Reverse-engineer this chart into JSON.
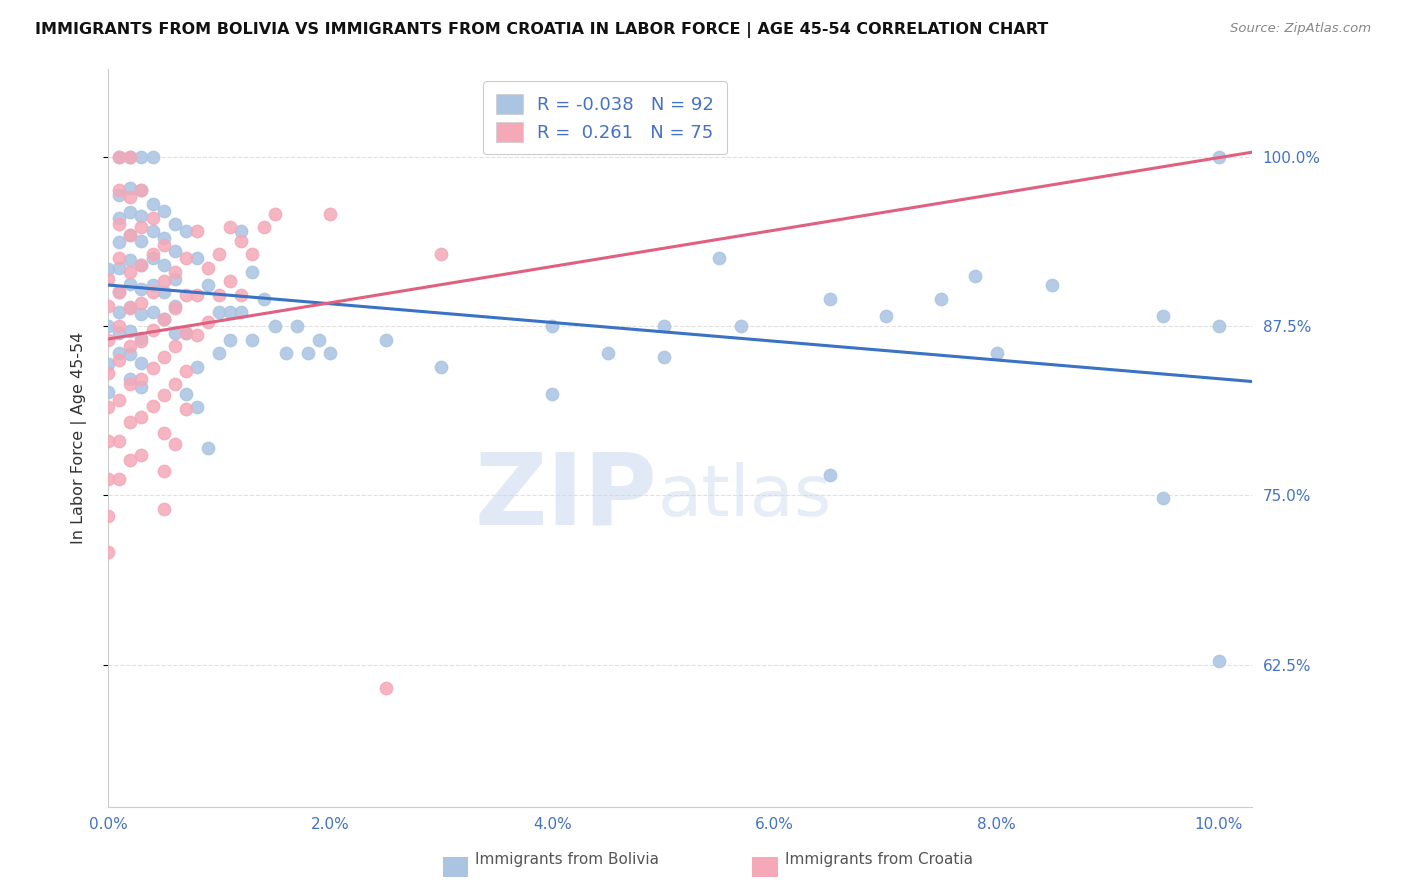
{
  "title": "IMMIGRANTS FROM BOLIVIA VS IMMIGRANTS FROM CROATIA IN LABOR FORCE | AGE 45-54 CORRELATION CHART",
  "source": "Source: ZipAtlas.com",
  "ylabel": "In Labor Force | Age 45-54",
  "xlim": [
    0.0,
    0.103
  ],
  "ylim": [
    0.52,
    1.065
  ],
  "bolivia_R": -0.038,
  "bolivia_N": 92,
  "croatia_R": 0.261,
  "croatia_N": 75,
  "bolivia_color": "#aac4e2",
  "croatia_color": "#f4a8b8",
  "bolivia_line_color": "#3a72c4",
  "croatia_line_color": "#e06080",
  "ytick_positions": [
    0.625,
    0.75,
    0.875,
    1.0
  ],
  "ytick_labels": [
    "62.5%",
    "75.0%",
    "87.5%",
    "100.0%"
  ],
  "xtick_positions": [
    0.0,
    0.02,
    0.04,
    0.06,
    0.08,
    0.1
  ],
  "xtick_labels": [
    "0.0%",
    "2.0%",
    "4.0%",
    "6.0%",
    "8.0%",
    "10.0%"
  ],
  "bolivia_scatter": [
    [
      0.0,
      0.917
    ],
    [
      0.0,
      0.875
    ],
    [
      0.0,
      0.847
    ],
    [
      0.0,
      0.826
    ],
    [
      0.001,
      1.0
    ],
    [
      0.001,
      0.972
    ],
    [
      0.001,
      0.955
    ],
    [
      0.001,
      0.937
    ],
    [
      0.001,
      0.918
    ],
    [
      0.001,
      0.9
    ],
    [
      0.001,
      0.885
    ],
    [
      0.001,
      0.87
    ],
    [
      0.001,
      0.855
    ],
    [
      0.002,
      1.0
    ],
    [
      0.002,
      0.977
    ],
    [
      0.002,
      0.959
    ],
    [
      0.002,
      0.942
    ],
    [
      0.002,
      0.924
    ],
    [
      0.002,
      0.906
    ],
    [
      0.002,
      0.889
    ],
    [
      0.002,
      0.871
    ],
    [
      0.002,
      0.854
    ],
    [
      0.002,
      0.836
    ],
    [
      0.003,
      1.0
    ],
    [
      0.003,
      0.975
    ],
    [
      0.003,
      0.956
    ],
    [
      0.003,
      0.938
    ],
    [
      0.003,
      0.92
    ],
    [
      0.003,
      0.902
    ],
    [
      0.003,
      0.884
    ],
    [
      0.003,
      0.866
    ],
    [
      0.003,
      0.848
    ],
    [
      0.003,
      0.83
    ],
    [
      0.004,
      1.0
    ],
    [
      0.004,
      0.965
    ],
    [
      0.004,
      0.945
    ],
    [
      0.004,
      0.925
    ],
    [
      0.004,
      0.905
    ],
    [
      0.004,
      0.885
    ],
    [
      0.005,
      0.96
    ],
    [
      0.005,
      0.94
    ],
    [
      0.005,
      0.92
    ],
    [
      0.005,
      0.9
    ],
    [
      0.005,
      0.88
    ],
    [
      0.006,
      0.95
    ],
    [
      0.006,
      0.93
    ],
    [
      0.006,
      0.91
    ],
    [
      0.006,
      0.89
    ],
    [
      0.006,
      0.87
    ],
    [
      0.007,
      0.945
    ],
    [
      0.007,
      0.87
    ],
    [
      0.007,
      0.825
    ],
    [
      0.008,
      0.925
    ],
    [
      0.008,
      0.845
    ],
    [
      0.008,
      0.815
    ],
    [
      0.009,
      0.905
    ],
    [
      0.009,
      0.785
    ],
    [
      0.01,
      0.885
    ],
    [
      0.01,
      0.855
    ],
    [
      0.011,
      0.885
    ],
    [
      0.011,
      0.865
    ],
    [
      0.012,
      0.945
    ],
    [
      0.012,
      0.885
    ],
    [
      0.013,
      0.915
    ],
    [
      0.013,
      0.865
    ],
    [
      0.014,
      0.895
    ],
    [
      0.015,
      0.875
    ],
    [
      0.016,
      0.855
    ],
    [
      0.017,
      0.875
    ],
    [
      0.018,
      0.855
    ],
    [
      0.019,
      0.865
    ],
    [
      0.02,
      0.855
    ],
    [
      0.025,
      0.865
    ],
    [
      0.03,
      0.845
    ],
    [
      0.04,
      0.875
    ],
    [
      0.04,
      0.825
    ],
    [
      0.045,
      0.855
    ],
    [
      0.05,
      0.875
    ],
    [
      0.05,
      0.852
    ],
    [
      0.055,
      0.925
    ],
    [
      0.057,
      0.875
    ],
    [
      0.065,
      0.895
    ],
    [
      0.065,
      0.765
    ],
    [
      0.07,
      0.882
    ],
    [
      0.075,
      0.895
    ],
    [
      0.078,
      0.912
    ],
    [
      0.08,
      0.855
    ],
    [
      0.085,
      0.905
    ],
    [
      0.095,
      0.882
    ],
    [
      0.095,
      0.748
    ],
    [
      0.1,
      1.0
    ],
    [
      0.1,
      0.875
    ],
    [
      0.1,
      0.628
    ]
  ],
  "croatia_scatter": [
    [
      0.0,
      0.91
    ],
    [
      0.0,
      0.89
    ],
    [
      0.0,
      0.865
    ],
    [
      0.0,
      0.84
    ],
    [
      0.0,
      0.815
    ],
    [
      0.0,
      0.79
    ],
    [
      0.0,
      0.762
    ],
    [
      0.0,
      0.735
    ],
    [
      0.0,
      0.708
    ],
    [
      0.001,
      1.0
    ],
    [
      0.001,
      0.975
    ],
    [
      0.001,
      0.95
    ],
    [
      0.001,
      0.925
    ],
    [
      0.001,
      0.9
    ],
    [
      0.001,
      0.875
    ],
    [
      0.001,
      0.85
    ],
    [
      0.001,
      0.82
    ],
    [
      0.001,
      0.79
    ],
    [
      0.001,
      0.762
    ],
    [
      0.002,
      1.0
    ],
    [
      0.002,
      0.97
    ],
    [
      0.002,
      0.942
    ],
    [
      0.002,
      0.915
    ],
    [
      0.002,
      0.888
    ],
    [
      0.002,
      0.86
    ],
    [
      0.002,
      0.832
    ],
    [
      0.002,
      0.804
    ],
    [
      0.002,
      0.776
    ],
    [
      0.003,
      0.975
    ],
    [
      0.003,
      0.948
    ],
    [
      0.003,
      0.92
    ],
    [
      0.003,
      0.892
    ],
    [
      0.003,
      0.864
    ],
    [
      0.003,
      0.836
    ],
    [
      0.003,
      0.808
    ],
    [
      0.003,
      0.78
    ],
    [
      0.004,
      0.955
    ],
    [
      0.004,
      0.928
    ],
    [
      0.004,
      0.9
    ],
    [
      0.004,
      0.872
    ],
    [
      0.004,
      0.844
    ],
    [
      0.004,
      0.816
    ],
    [
      0.005,
      0.935
    ],
    [
      0.005,
      0.908
    ],
    [
      0.005,
      0.88
    ],
    [
      0.005,
      0.852
    ],
    [
      0.005,
      0.824
    ],
    [
      0.005,
      0.796
    ],
    [
      0.005,
      0.768
    ],
    [
      0.005,
      0.74
    ],
    [
      0.006,
      0.915
    ],
    [
      0.006,
      0.888
    ],
    [
      0.006,
      0.86
    ],
    [
      0.006,
      0.832
    ],
    [
      0.006,
      0.788
    ],
    [
      0.007,
      0.925
    ],
    [
      0.007,
      0.898
    ],
    [
      0.007,
      0.87
    ],
    [
      0.007,
      0.842
    ],
    [
      0.007,
      0.814
    ],
    [
      0.008,
      0.945
    ],
    [
      0.008,
      0.898
    ],
    [
      0.008,
      0.868
    ],
    [
      0.009,
      0.918
    ],
    [
      0.009,
      0.878
    ],
    [
      0.01,
      0.928
    ],
    [
      0.01,
      0.898
    ],
    [
      0.011,
      0.948
    ],
    [
      0.011,
      0.908
    ],
    [
      0.012,
      0.938
    ],
    [
      0.012,
      0.898
    ],
    [
      0.013,
      0.928
    ],
    [
      0.014,
      0.948
    ],
    [
      0.015,
      0.958
    ],
    [
      0.02,
      0.958
    ],
    [
      0.025,
      0.608
    ],
    [
      0.03,
      0.928
    ]
  ],
  "watermark_zip": "ZIP",
  "watermark_atlas": "atlas",
  "background_color": "#ffffff",
  "grid_color": "#e0e0e0",
  "tick_color": "#4472c4",
  "label_color": "#555555"
}
